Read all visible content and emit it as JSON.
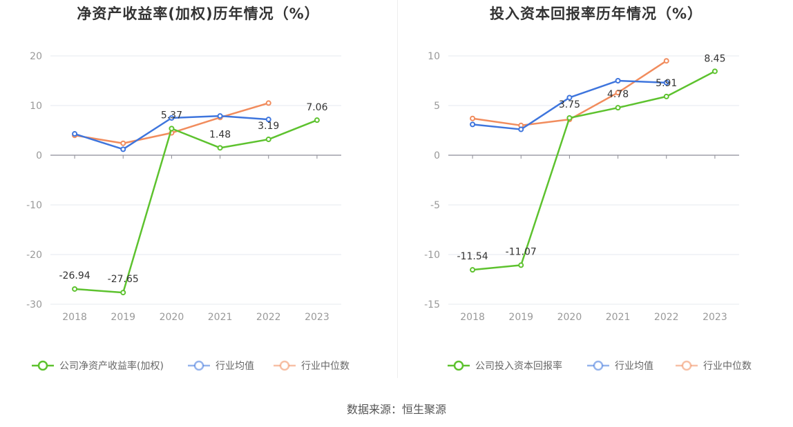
{
  "source_text": "数据来源：恒生聚源",
  "colors": {
    "company": "#5dc22e",
    "average": "#3e75dd",
    "median": "#f18c5d",
    "grid": "#e6e8ef",
    "axis": "#8c8c96"
  },
  "chart_data": [
    {
      "type": "line",
      "title": "净资产收益率(加权)历年情况（%）",
      "categories": [
        "2018",
        "2019",
        "2020",
        "2021",
        "2022",
        "2023"
      ],
      "ylim": [
        -30,
        20
      ],
      "yticks": [
        20,
        10,
        0,
        -10,
        -20,
        -30
      ],
      "grid": true,
      "legend_position": "bottom",
      "series": [
        {
          "name": "公司净资产收益率(加权)",
          "key": "company",
          "values": [
            -26.94,
            -27.65,
            5.37,
            1.48,
            3.19,
            7.06
          ],
          "labels": [
            "-26.94",
            "-27.65",
            "5.37",
            "1.48",
            "3.19",
            "7.06"
          ]
        },
        {
          "name": "行业均值",
          "key": "average",
          "values": [
            4.3,
            1.2,
            7.5,
            7.9,
            7.2,
            null
          ]
        },
        {
          "name": "行业中位数",
          "key": "median",
          "values": [
            4.0,
            2.4,
            4.5,
            7.6,
            10.5,
            null
          ]
        }
      ]
    },
    {
      "type": "line",
      "title": "投入资本回报率历年情况（%）",
      "categories": [
        "2018",
        "2019",
        "2020",
        "2021",
        "2022",
        "2023"
      ],
      "ylim": [
        -15,
        10
      ],
      "yticks": [
        10,
        5,
        0,
        -5,
        -10,
        -15
      ],
      "grid": true,
      "legend_position": "bottom",
      "series": [
        {
          "name": "公司投入资本回报率",
          "key": "company",
          "values": [
            -11.54,
            -11.07,
            3.75,
            4.78,
            5.91,
            8.45
          ],
          "labels": [
            "-11.54",
            "-11.07",
            "3.75",
            "4.78",
            "5.91",
            "8.45"
          ]
        },
        {
          "name": "行业均值",
          "key": "average",
          "values": [
            3.1,
            2.6,
            5.8,
            7.5,
            7.3,
            null
          ]
        },
        {
          "name": "行业中位数",
          "key": "median",
          "values": [
            3.7,
            3.0,
            3.6,
            6.3,
            9.5,
            null
          ]
        }
      ]
    }
  ]
}
